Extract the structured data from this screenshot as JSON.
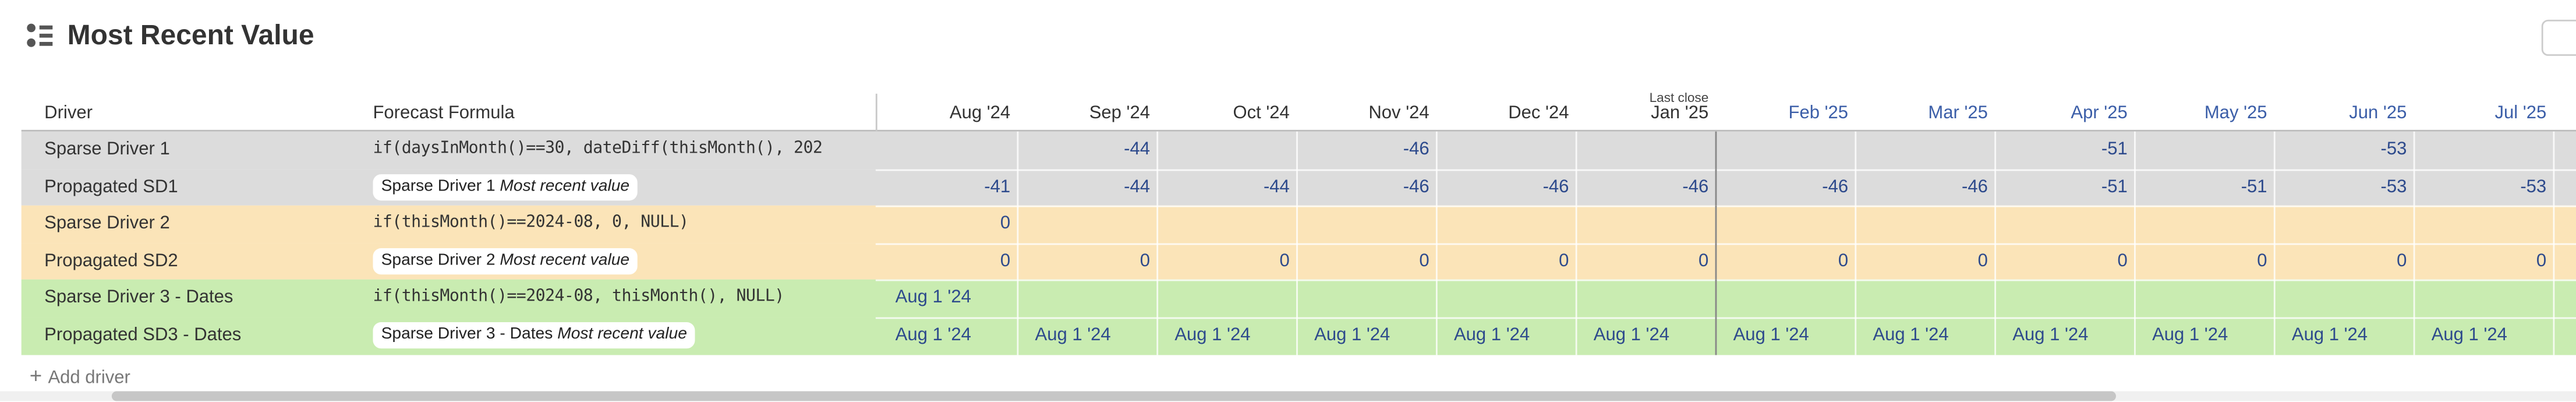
{
  "header": {
    "title": "Most Recent Value"
  },
  "table": {
    "columns": {
      "driver": "Driver",
      "formula": "Forecast Formula"
    },
    "months": [
      {
        "label": "Aug '24"
      },
      {
        "label": "Sep '24"
      },
      {
        "label": "Oct '24"
      },
      {
        "label": "Nov '24"
      },
      {
        "label": "Dec '24"
      },
      {
        "label": "Jan '25",
        "note": "Last close"
      },
      {
        "label": "Feb '25"
      },
      {
        "label": "Mar '25"
      },
      {
        "label": "Apr '25"
      },
      {
        "label": "May '25"
      },
      {
        "label": "Jun '25"
      },
      {
        "label": "Jul '25"
      }
    ],
    "rows": [
      {
        "driver": "Sparse Driver 1",
        "formula": "if(daysInMonth()==30, dateDiff(thisMonth(), 202",
        "color": "#dcdcdc",
        "cells": [
          null,
          -44,
          null,
          -46,
          null,
          null,
          null,
          null,
          -51,
          null,
          -53,
          null
        ]
      },
      {
        "driver": "Propagated SD1",
        "pill": {
          "ref": "Sparse Driver 1",
          "label": "Most recent value"
        },
        "color": "#dcdcdc",
        "cells": [
          -41,
          -44,
          -44,
          -46,
          -46,
          -46,
          -46,
          -46,
          -51,
          -51,
          -53,
          -53
        ]
      },
      {
        "driver": "Sparse Driver 2",
        "formula": "if(thisMonth()==2024-08, 0, NULL)",
        "color": "#fbe4b8",
        "cells": [
          0,
          null,
          null,
          null,
          null,
          null,
          null,
          null,
          null,
          null,
          null,
          null
        ]
      },
      {
        "driver": "Propagated SD2",
        "pill": {
          "ref": "Sparse Driver 2",
          "label": "Most recent value"
        },
        "color": "#fbe4b8",
        "cells": [
          0,
          0,
          0,
          0,
          0,
          0,
          0,
          0,
          0,
          0,
          0,
          0
        ]
      },
      {
        "driver": "Sparse Driver 3 - Dates",
        "formula": "if(thisMonth()==2024-08, thisMonth(), NULL)",
        "color": "#c9ecb1",
        "cells": [
          "Aug 1 '24",
          null,
          null,
          null,
          null,
          null,
          null,
          null,
          null,
          null,
          null,
          null
        ]
      },
      {
        "driver": "Propagated SD3 - Dates",
        "pill": {
          "ref": "Sparse Driver 3 - Dates",
          "label": "Most recent value"
        },
        "color": "#c9ecb1",
        "cells": [
          "Aug 1 '24",
          "Aug 1 '24",
          "Aug 1 '24",
          "Aug 1 '24",
          "Aug 1 '24",
          "Aug 1 '24",
          "Aug 1 '24",
          "Aug 1 '24",
          "Aug 1 '24",
          "Aug 1 '24",
          "Aug 1 '24",
          "Aug 1 '24"
        ]
      }
    ]
  },
  "add_driver": "Add driver"
}
